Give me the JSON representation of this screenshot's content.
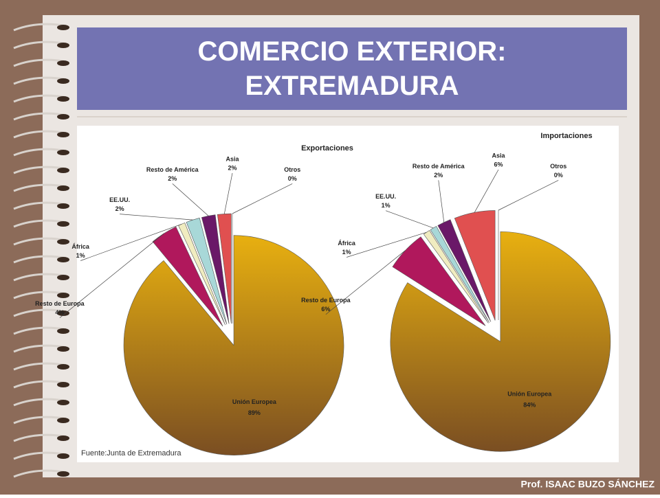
{
  "title": "COMERCIO EXTERIOR: EXTREMADURA",
  "source": "Fuente:Junta de Extremadura",
  "footer": "Prof. ISAAC BUZO SÁNCHEZ",
  "chart_data": [
    {
      "type": "pie",
      "title": "Exportaciones",
      "categories": [
        "Unión Europea",
        "Resto de Europa",
        "África",
        "EE.UU.",
        "Resto de América",
        "Asia",
        "Otros"
      ],
      "values": [
        89,
        4,
        1,
        2,
        2,
        2,
        0
      ],
      "value_labels": [
        "89%",
        "4%",
        "1%",
        "2%",
        "2%",
        "2%",
        "0%"
      ],
      "colors": [
        "#c8921e",
        "#b0185c",
        "#f0ecc0",
        "#a8d8d8",
        "#6a1868",
        "#e05050",
        "#5a2a5a"
      ]
    },
    {
      "type": "pie",
      "title": "Importaciones",
      "categories": [
        "Unión Europea",
        "Resto de Europa",
        "África",
        "EE.UU.",
        "Resto de América",
        "Asia",
        "Otros"
      ],
      "values": [
        84,
        6,
        1,
        1,
        2,
        6,
        0
      ],
      "value_labels": [
        "84%",
        "6%",
        "1%",
        "1%",
        "2%",
        "6%",
        "0%"
      ],
      "colors": [
        "#c8921e",
        "#b0185c",
        "#f0ecc0",
        "#a8d8d8",
        "#6a1868",
        "#e05050",
        "#5a2a5a"
      ]
    }
  ]
}
